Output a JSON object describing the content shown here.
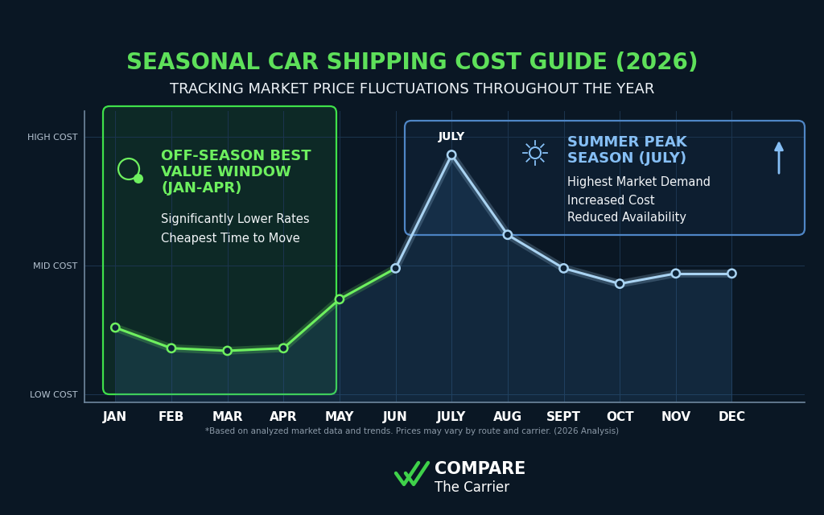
{
  "chart_data": {
    "type": "line",
    "title": "SEASONAL CAR SHIPPING COST GUIDE (2026)",
    "subtitle": "TRACKING MARKET PRICE FLUCTUATIONS THROUGHOUT THE YEAR",
    "categories": [
      "JAN",
      "FEB",
      "MAR",
      "APR",
      "MAY",
      "JUN",
      "JULY",
      "AUG",
      "SEPT",
      "OCT",
      "NOV",
      "DEC"
    ],
    "values": [
      2.6,
      1.8,
      1.7,
      1.8,
      3.7,
      4.9,
      9.3,
      6.2,
      4.9,
      4.3,
      4.7,
      4.7
    ],
    "colors": [
      "#6ef05f",
      "#6ef05f",
      "#6ef05f",
      "#6ef05f",
      "#6ef05f",
      "#a9d3f2",
      "#a9d3f2",
      "#a9d3f2",
      "#a9d3f2",
      "#a9d3f2",
      "#a9d3f2",
      "#a9d3f2"
    ],
    "marker": "o",
    "ylim": [
      -0.3,
      11
    ],
    "yticks": [
      {
        "value": 0,
        "label": "LOW COST"
      },
      {
        "value": 5,
        "label": "MID COST"
      },
      {
        "value": 10,
        "label": "HIGH COST"
      }
    ],
    "grid": true,
    "annotations": [
      {
        "category": "JULY",
        "text": "JULY"
      }
    ],
    "callouts": [
      {
        "title": "OFF-SEASON BEST VALUE WINDOW (JAN-APR)",
        "lines": [
          "Significantly Lower Rates",
          "Cheapest Time to Move"
        ]
      },
      {
        "title": "SUMMER PEAK SEASON (JULY)",
        "lines": [
          "Highest Market Demand",
          "Increased Cost",
          "Reduced Availability"
        ]
      }
    ],
    "footnote": "*Based on analyzed market data and trends. Prices may vary by route and carrier. (2026 Analysis)",
    "brand": [
      "COMPARE",
      "The Carrier"
    ]
  }
}
